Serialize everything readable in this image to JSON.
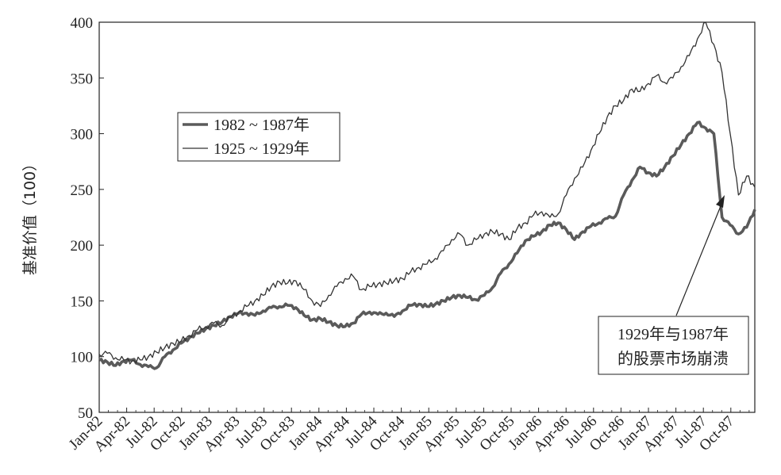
{
  "chart_data": {
    "type": "line",
    "ylabel": "基准价值（100）",
    "ylim": [
      50,
      400
    ],
    "yticks": [
      50,
      100,
      150,
      200,
      250,
      300,
      350,
      400
    ],
    "x_labels": [
      "Jan-82",
      "Apr-82",
      "Jul-82",
      "Oct-82",
      "Jan-83",
      "Apr-83",
      "Jul-83",
      "Oct-83",
      "Jan-84",
      "Apr-84",
      "Jul-84",
      "Oct-84",
      "Jan-85",
      "Apr-85",
      "Jul-85",
      "Oct-85",
      "Jan-86",
      "Apr-86",
      "Jul-86",
      "Oct-86",
      "Jan-87",
      "Apr-87",
      "Jul-87",
      "Oct-87"
    ],
    "grid": false,
    "legend_position": "upper-left",
    "series": [
      {
        "name": "1982 ~ 1987年",
        "color": "#5a5a5a",
        "values": [
          [
            0,
            97
          ],
          [
            1,
            95
          ],
          [
            2,
            92
          ],
          [
            3,
            96
          ],
          [
            4,
            97
          ],
          [
            5,
            93
          ],
          [
            6,
            91
          ],
          [
            7,
            90
          ],
          [
            8,
            100
          ],
          [
            9,
            106
          ],
          [
            10,
            112
          ],
          [
            11,
            117
          ],
          [
            12,
            121
          ],
          [
            13,
            125
          ],
          [
            14,
            128
          ],
          [
            15,
            131
          ],
          [
            16,
            136
          ],
          [
            17,
            139
          ],
          [
            18,
            139
          ],
          [
            19,
            137
          ],
          [
            20,
            141
          ],
          [
            21,
            144
          ],
          [
            22,
            145
          ],
          [
            23,
            146
          ],
          [
            24,
            144
          ],
          [
            25,
            137
          ],
          [
            26,
            133
          ],
          [
            27,
            134
          ],
          [
            28,
            131
          ],
          [
            29,
            128
          ],
          [
            30,
            127
          ],
          [
            31,
            130
          ],
          [
            32,
            138
          ],
          [
            33,
            140
          ],
          [
            34,
            138
          ],
          [
            35,
            139
          ],
          [
            36,
            136
          ],
          [
            37,
            141
          ],
          [
            38,
            146
          ],
          [
            39,
            147
          ],
          [
            40,
            145
          ],
          [
            41,
            147
          ],
          [
            42,
            150
          ],
          [
            43,
            153
          ],
          [
            44,
            155
          ],
          [
            45,
            153
          ],
          [
            46,
            151
          ],
          [
            47,
            155
          ],
          [
            48,
            162
          ],
          [
            49,
            175
          ],
          [
            50,
            183
          ],
          [
            51,
            193
          ],
          [
            52,
            204
          ],
          [
            53,
            208
          ],
          [
            54,
            212
          ],
          [
            55,
            218
          ],
          [
            56,
            220
          ],
          [
            57,
            214
          ],
          [
            58,
            205
          ],
          [
            59,
            212
          ],
          [
            60,
            217
          ],
          [
            61,
            220
          ],
          [
            62,
            224
          ],
          [
            63,
            226
          ],
          [
            64,
            245
          ],
          [
            65,
            258
          ],
          [
            66,
            270
          ],
          [
            67,
            265
          ],
          [
            68,
            262
          ],
          [
            69,
            270
          ],
          [
            70,
            280
          ],
          [
            71,
            290
          ],
          [
            72,
            300
          ],
          [
            73,
            310
          ],
          [
            74,
            305
          ],
          [
            75,
            300
          ],
          [
            76,
            225
          ],
          [
            77,
            218
          ],
          [
            78,
            210
          ],
          [
            79,
            216
          ],
          [
            80,
            232
          ]
        ]
      },
      {
        "name": "1925 ~ 1929年",
        "color": "#333333",
        "values": [
          [
            0,
            102
          ],
          [
            1,
            103
          ],
          [
            2,
            99
          ],
          [
            3,
            97
          ],
          [
            4,
            96
          ],
          [
            5,
            97
          ],
          [
            6,
            100
          ],
          [
            7,
            104
          ],
          [
            8,
            108
          ],
          [
            9,
            112
          ],
          [
            10,
            114
          ],
          [
            11,
            119
          ],
          [
            12,
            124
          ],
          [
            13,
            127
          ],
          [
            14,
            130
          ],
          [
            15,
            128
          ],
          [
            16,
            135
          ],
          [
            17,
            140
          ],
          [
            18,
            145
          ],
          [
            19,
            150
          ],
          [
            20,
            155
          ],
          [
            21,
            163
          ],
          [
            22,
            167
          ],
          [
            23,
            166
          ],
          [
            24,
            168
          ],
          [
            25,
            160
          ],
          [
            26,
            150
          ],
          [
            27,
            145
          ],
          [
            28,
            155
          ],
          [
            29,
            163
          ],
          [
            30,
            170
          ],
          [
            31,
            172
          ],
          [
            32,
            160
          ],
          [
            33,
            163
          ],
          [
            34,
            165
          ],
          [
            35,
            166
          ],
          [
            36,
            168
          ],
          [
            37,
            170
          ],
          [
            38,
            176
          ],
          [
            39,
            180
          ],
          [
            40,
            183
          ],
          [
            41,
            188
          ],
          [
            42,
            195
          ],
          [
            43,
            205
          ],
          [
            44,
            210
          ],
          [
            45,
            200
          ],
          [
            46,
            205
          ],
          [
            47,
            210
          ],
          [
            48,
            212
          ],
          [
            49,
            210
          ],
          [
            50,
            205
          ],
          [
            51,
            215
          ],
          [
            52,
            220
          ],
          [
            53,
            227
          ],
          [
            54,
            230
          ],
          [
            55,
            225
          ],
          [
            56,
            228
          ],
          [
            57,
            245
          ],
          [
            58,
            260
          ],
          [
            59,
            270
          ],
          [
            60,
            285
          ],
          [
            61,
            300
          ],
          [
            62,
            315
          ],
          [
            63,
            325
          ],
          [
            64,
            330
          ],
          [
            65,
            340
          ],
          [
            66,
            338
          ],
          [
            67,
            345
          ],
          [
            68,
            352
          ],
          [
            69,
            346
          ],
          [
            70,
            350
          ],
          [
            71,
            360
          ],
          [
            72,
            370
          ],
          [
            73,
            385
          ],
          [
            74,
            400
          ],
          [
            75,
            380
          ],
          [
            76,
            355
          ],
          [
            77,
            300
          ],
          [
            78,
            245
          ],
          [
            79,
            262
          ],
          [
            80,
            252
          ]
        ]
      }
    ],
    "annotation": {
      "lines": [
        "1929年与1987年",
        "的股票市场崩溃"
      ]
    }
  }
}
